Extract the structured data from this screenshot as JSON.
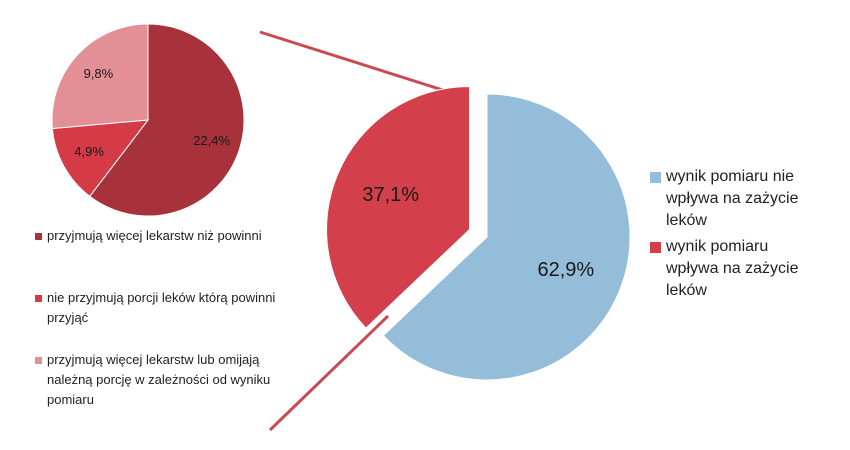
{
  "chart_data": [
    {
      "type": "pie",
      "categories": [
        "wynik pomiaru nie wpływa na zażycie leków",
        "wynik pomiaru wpływa na zażycie leków"
      ],
      "values": [
        62.9,
        37.1
      ],
      "value_labels": [
        "62,9%",
        "37,1%"
      ],
      "colors": [
        "#93bdd8",
        "#d43f4c"
      ],
      "exploded": [
        false,
        true
      ]
    },
    {
      "type": "pie",
      "categories": [
        "przyjmują więcej lekarstw niż powinni",
        "nie przyjmują porcji leków którą powinni przyjąć",
        "przyjmują więcej lekarstw lub omijają należną porcję w zależności od wyniku pomiaru"
      ],
      "values": [
        22.4,
        4.9,
        9.8
      ],
      "value_labels": [
        "22,4%",
        "4,9%",
        "9,8%"
      ],
      "colors": [
        "#a8323b",
        "#d53a47",
        "#e28f96"
      ]
    }
  ]
}
